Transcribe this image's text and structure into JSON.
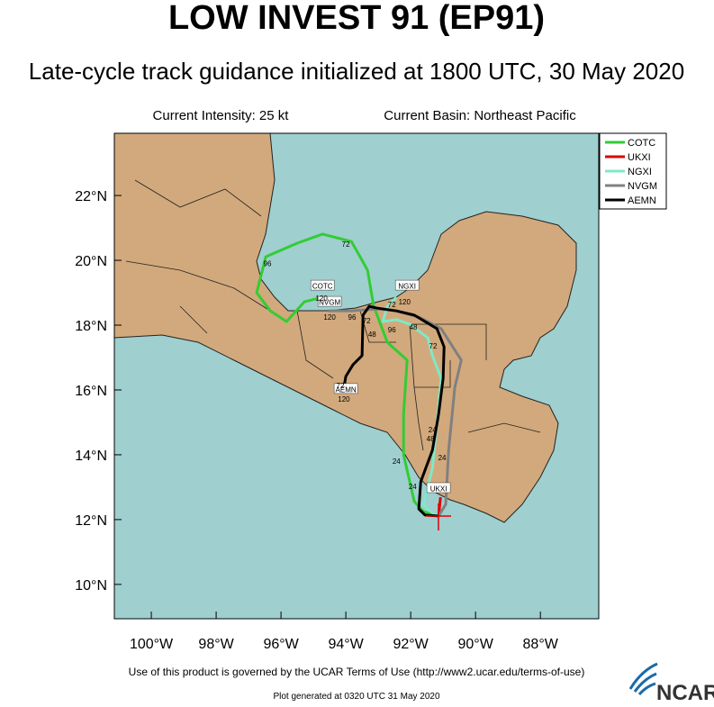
{
  "chart_data": {
    "type": "map",
    "title": "LOW INVEST 91 (EP91)",
    "subtitle": "Late-cycle track guidance initialized at 1800 UTC, 30 May 2020",
    "info_left": "Current Intensity: 25 kt",
    "info_right": "Current Basin: Northeast Pacific",
    "footer": "Use of this product is governed by the UCAR Terms of Use (http://www2.ucar.edu/terms-of-use)",
    "generated": "Plot generated at 0320 UTC  31 May 2020",
    "logo": "NCAR",
    "xlim": [
      -101.14,
      -86.2
    ],
    "ylim": [
      8.94,
      23.92
    ],
    "xticks": [
      {
        "value": -100,
        "label": "100°W"
      },
      {
        "value": -98,
        "label": "98°W"
      },
      {
        "value": -96,
        "label": "96°W"
      },
      {
        "value": -94,
        "label": "94°W"
      },
      {
        "value": -92,
        "label": "92°W"
      },
      {
        "value": -90,
        "label": "90°W"
      },
      {
        "value": -88,
        "label": "88°W"
      }
    ],
    "yticks": [
      {
        "value": 10,
        "label": "10°N"
      },
      {
        "value": 12,
        "label": "12°N"
      },
      {
        "value": 14,
        "label": "14°N"
      },
      {
        "value": 16,
        "label": "16°N"
      },
      {
        "value": 18,
        "label": "18°N"
      },
      {
        "value": 20,
        "label": "20°N"
      },
      {
        "value": 22,
        "label": "22°N"
      }
    ],
    "grid": true,
    "series": [
      {
        "name": "COTC",
        "color": "#33cc33",
        "lon": [
          -91.14,
          -91.61,
          -91.89,
          -92.22,
          -92.22,
          -92.11,
          -92.72,
          -93.14,
          -93.33,
          -93.56,
          -93.83,
          -94.72,
          -95.5,
          -96.47,
          -96.75,
          -96.33,
          -95.83,
          -95.28,
          -94.72
        ],
        "lat": [
          12.11,
          12.25,
          12.56,
          14.0,
          15.25,
          16.92,
          17.47,
          18.58,
          19.69,
          20.11,
          20.58,
          20.81,
          20.53,
          20.11,
          19.0,
          18.44,
          18.11,
          18.72,
          18.86
        ]
      },
      {
        "name": "UKXI",
        "color": "#e00000",
        "lon": [
          -91.14,
          -91.08
        ],
        "lat": [
          12.11,
          12.69
        ]
      },
      {
        "name": "NGXI",
        "color": "#80e8c8",
        "lon": [
          -91.14,
          -91.39,
          -91.61,
          -91.33,
          -91.19,
          -91.06,
          -91.33,
          -91.47,
          -92.03,
          -92.44,
          -92.86,
          -92.72,
          -92.44
        ],
        "lat": [
          12.11,
          12.25,
          12.47,
          13.58,
          14.97,
          16.36,
          17.06,
          17.61,
          18.03,
          18.17,
          18.11,
          18.58,
          18.86
        ]
      },
      {
        "name": "NVGM",
        "color": "#808080",
        "lon": [
          -91.14,
          -90.92,
          -90.83,
          -90.64,
          -90.44,
          -91.06,
          -91.75,
          -92.44,
          -93.0,
          -93.83,
          -94.53
        ],
        "lat": [
          12.11,
          12.47,
          14.14,
          16.08,
          16.92,
          17.89,
          18.25,
          18.44,
          18.5,
          18.44,
          18.44
        ]
      },
      {
        "name": "AEMN",
        "color": "#000000",
        "lon": [
          -91.14,
          -91.56,
          -91.75,
          -91.69,
          -91.33,
          -91.14,
          -91.0,
          -90.97,
          -91.19,
          -91.89,
          -92.44,
          -93.06,
          -93.28,
          -93.47,
          -93.5,
          -93.78,
          -94.0,
          -94.06
        ],
        "lat": [
          12.11,
          12.14,
          12.33,
          13.17,
          14.14,
          15.25,
          16.36,
          17.33,
          17.89,
          18.31,
          18.44,
          18.53,
          18.58,
          18.31,
          17.06,
          16.78,
          16.42,
          16.08
        ]
      }
    ],
    "track_labels": [
      {
        "text": "COTC",
        "lon": -94.72,
        "lat": 19.22
      },
      {
        "text": "NVGM",
        "lon": -94.5,
        "lat": 18.72
      },
      {
        "text": "AEMN",
        "lon": -94.0,
        "lat": 16.03
      },
      {
        "text": "NGXI",
        "lon": -92.11,
        "lat": 19.22
      },
      {
        "text": "UKXI",
        "lon": -91.14,
        "lat": 12.97
      }
    ],
    "hour_labels": [
      {
        "text": "96",
        "lon": -96.42,
        "lat": 19.9
      },
      {
        "text": "72",
        "lon": -94.0,
        "lat": 20.5
      },
      {
        "text": "120",
        "lon": -94.75,
        "lat": 18.83
      },
      {
        "text": "120",
        "lon": -94.5,
        "lat": 18.25
      },
      {
        "text": "96",
        "lon": -93.81,
        "lat": 18.25
      },
      {
        "text": "72",
        "lon": -93.36,
        "lat": 18.14
      },
      {
        "text": "48",
        "lon": -93.19,
        "lat": 17.72
      },
      {
        "text": "96",
        "lon": -92.58,
        "lat": 17.86
      },
      {
        "text": "72",
        "lon": -92.58,
        "lat": 18.64
      },
      {
        "text": "120",
        "lon": -92.19,
        "lat": 18.72
      },
      {
        "text": "48",
        "lon": -91.92,
        "lat": 17.94
      },
      {
        "text": "72",
        "lon": -91.31,
        "lat": 17.36
      },
      {
        "text": "72",
        "lon": -94.17,
        "lat": 16.14
      },
      {
        "text": "120",
        "lon": -94.06,
        "lat": 15.72
      },
      {
        "text": "24",
        "lon": -92.44,
        "lat": 13.81
      },
      {
        "text": "24",
        "lon": -91.94,
        "lat": 13.03
      },
      {
        "text": "24",
        "lon": -91.03,
        "lat": 13.92
      },
      {
        "text": "24",
        "lon": -91.33,
        "lat": 14.78
      },
      {
        "text": "48",
        "lon": -91.39,
        "lat": 14.5
      }
    ]
  }
}
